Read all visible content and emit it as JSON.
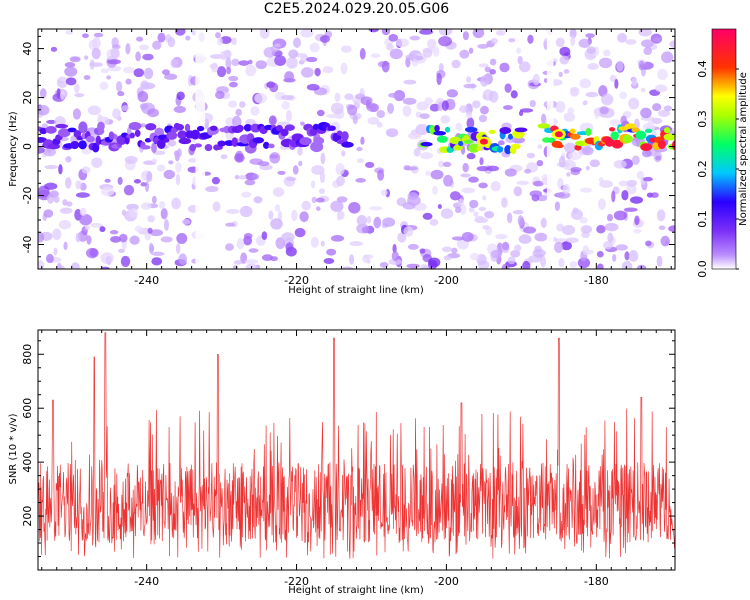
{
  "title": "C2E5.2024.029.20.05.G06",
  "chart_data": [
    {
      "type": "heatmap",
      "xlabel": "Height of straight line (km)",
      "ylabel": "Frequency (Hz)",
      "xlim": [
        -254.5,
        -169.5
      ],
      "ylim": [
        -50,
        48
      ],
      "xticks": [
        -240,
        -220,
        -200,
        -180
      ],
      "xtick_labels": [
        "-240",
        "-220",
        "-200",
        "-180"
      ],
      "yticks": [
        -40,
        -20,
        0,
        20,
        40
      ],
      "ytick_labels": [
        "-40",
        "-20",
        "0",
        "20",
        "40"
      ],
      "colorbar": {
        "label": "Normalized spectral amplitude",
        "range": [
          0,
          0.48
        ],
        "ticks": [
          0.0,
          0.1,
          0.2,
          0.3,
          0.4
        ],
        "tick_labels": [
          "0.0",
          "0.1",
          "0.2",
          "0.3",
          "0.4"
        ],
        "colormap": [
          "#ffffff",
          "#7b2ff7",
          "#2a00ff",
          "#00e5ff",
          "#00ff44",
          "#ffff00",
          "#ff2a00",
          "#ff0066"
        ]
      },
      "features": [
        {
          "x_range": [
            -254.5,
            -213
          ],
          "freq_hz": 4,
          "amplitude": 0.12
        },
        {
          "x_range": [
            -203,
            -190
          ],
          "freq_hz": 3,
          "amplitude": 0.3
        },
        {
          "x_range": [
            -187,
            -169.5
          ],
          "freq_hz": 4,
          "amplitude": 0.4
        },
        {
          "x": -195,
          "freq_hz": 2,
          "amplitude": 0.45
        },
        {
          "x": -185,
          "freq_hz": 5,
          "amplitude": 0.46
        }
      ],
      "grid": false
    },
    {
      "type": "line",
      "xlabel": "Height of straight line (km)",
      "ylabel": "SNR (10 * v/v)",
      "xlim": [
        -254.5,
        -169.5
      ],
      "ylim": [
        0,
        890
      ],
      "xticks": [
        -240,
        -220,
        -200,
        -180
      ],
      "xtick_labels": [
        "-240",
        "-220",
        "-200",
        "-180"
      ],
      "yticks": [
        200,
        400,
        600,
        800
      ],
      "ytick_labels": [
        "200",
        "400",
        "600",
        "800"
      ],
      "color": "#ee3333",
      "peaks": [
        {
          "x": -252.5,
          "y": 630
        },
        {
          "x": -247,
          "y": 790
        },
        {
          "x": -245.5,
          "y": 880
        },
        {
          "x": -230.5,
          "y": 800
        },
        {
          "x": -215,
          "y": 860
        },
        {
          "x": -198,
          "y": 620
        },
        {
          "x": -185,
          "y": 860
        },
        {
          "x": -174,
          "y": 640
        }
      ],
      "baseline_range": [
        100,
        400
      ],
      "grid": false
    }
  ]
}
